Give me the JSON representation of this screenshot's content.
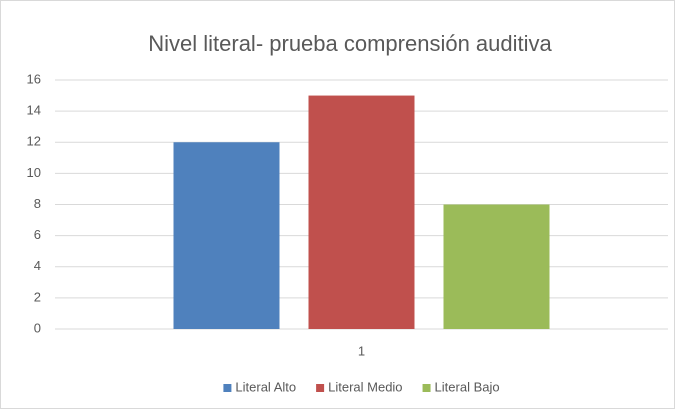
{
  "chart_data": {
    "type": "bar",
    "title": "Nivel literal- prueba comprensión auditiva",
    "categories": [
      "1"
    ],
    "series": [
      {
        "name": "Literal Alto",
        "color": "#4f81bd",
        "values": [
          12
        ]
      },
      {
        "name": "Literal Medio",
        "color": "#c0504d",
        "values": [
          15
        ]
      },
      {
        "name": "Literal Bajo",
        "color": "#9bbb59",
        "values": [
          8
        ]
      }
    ],
    "ylim": [
      0,
      16
    ],
    "yticks": [
      0,
      2,
      4,
      6,
      8,
      10,
      12,
      14,
      16
    ],
    "grid": true,
    "legend": "bottom"
  }
}
